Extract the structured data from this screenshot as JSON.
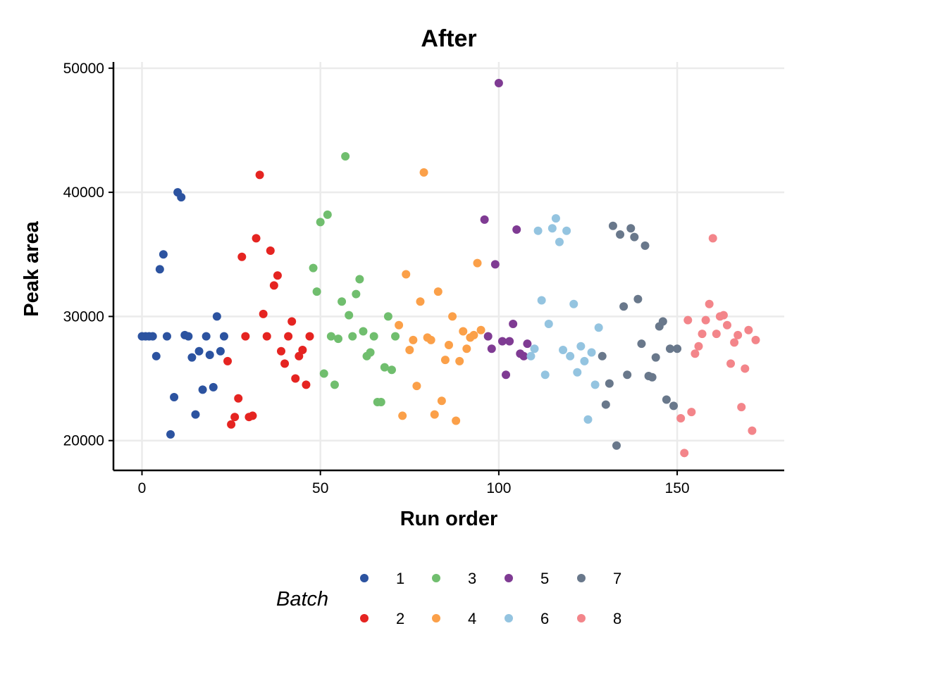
{
  "chart_data": {
    "type": "scatter",
    "title": "After",
    "xlabel": "Run order",
    "ylabel": "Peak area",
    "xlim": [
      -8,
      180
    ],
    "ylim": [
      17600,
      50500
    ],
    "x_ticks": [
      0,
      50,
      100,
      150
    ],
    "x_tick_labels": [
      "0",
      "50",
      "100",
      "150"
    ],
    "y_ticks": [
      20000,
      30000,
      40000,
      50000
    ],
    "y_tick_labels": [
      "20000",
      "30000",
      "40000",
      "50000"
    ],
    "grid": true,
    "legend": {
      "title": "Batch",
      "position": "bottom"
    },
    "series": [
      {
        "name": "1",
        "color": "#2c53a0",
        "points": [
          [
            0,
            28400
          ],
          [
            1,
            28400
          ],
          [
            2,
            28400
          ],
          [
            3,
            28400
          ],
          [
            4,
            26800
          ],
          [
            5,
            33800
          ],
          [
            6,
            35000
          ],
          [
            7,
            28400
          ],
          [
            8,
            20500
          ],
          [
            9,
            23500
          ],
          [
            10,
            40000
          ],
          [
            11,
            39600
          ],
          [
            12,
            28500
          ],
          [
            13,
            28400
          ],
          [
            14,
            26700
          ],
          [
            15,
            22100
          ],
          [
            16,
            27200
          ],
          [
            17,
            24100
          ],
          [
            18,
            28400
          ],
          [
            19,
            26900
          ],
          [
            20,
            24300
          ],
          [
            21,
            30000
          ],
          [
            22,
            27200
          ],
          [
            23,
            28400
          ]
        ]
      },
      {
        "name": "2",
        "color": "#e52421",
        "points": [
          [
            24,
            26400
          ],
          [
            25,
            21300
          ],
          [
            26,
            21900
          ],
          [
            27,
            23400
          ],
          [
            28,
            34800
          ],
          [
            29,
            28400
          ],
          [
            30,
            21900
          ],
          [
            31,
            22000
          ],
          [
            32,
            36300
          ],
          [
            33,
            41400
          ],
          [
            34,
            30200
          ],
          [
            35,
            28400
          ],
          [
            36,
            35300
          ],
          [
            37,
            32500
          ],
          [
            38,
            33300
          ],
          [
            39,
            27200
          ],
          [
            40,
            26200
          ],
          [
            41,
            28400
          ],
          [
            42,
            29600
          ],
          [
            43,
            25000
          ],
          [
            44,
            26800
          ],
          [
            45,
            27300
          ],
          [
            46,
            24500
          ],
          [
            47,
            28400
          ]
        ]
      },
      {
        "name": "3",
        "color": "#70be6e",
        "points": [
          [
            48,
            33900
          ],
          [
            49,
            32000
          ],
          [
            50,
            37600
          ],
          [
            51,
            25400
          ],
          [
            52,
            38200
          ],
          [
            53,
            28400
          ],
          [
            54,
            24500
          ],
          [
            55,
            28200
          ],
          [
            56,
            31200
          ],
          [
            57,
            42900
          ],
          [
            58,
            30100
          ],
          [
            59,
            28400
          ],
          [
            60,
            31800
          ],
          [
            61,
            33000
          ],
          [
            62,
            28800
          ],
          [
            63,
            26800
          ],
          [
            64,
            27100
          ],
          [
            65,
            28400
          ],
          [
            66,
            23100
          ],
          [
            67,
            23100
          ],
          [
            68,
            25900
          ],
          [
            69,
            30000
          ],
          [
            70,
            25700
          ],
          [
            71,
            28400
          ]
        ]
      },
      {
        "name": "4",
        "color": "#fba049",
        "points": [
          [
            72,
            29300
          ],
          [
            73,
            22000
          ],
          [
            74,
            33400
          ],
          [
            75,
            27300
          ],
          [
            76,
            28100
          ],
          [
            77,
            24400
          ],
          [
            78,
            31200
          ],
          [
            79,
            41600
          ],
          [
            80,
            28300
          ],
          [
            81,
            28100
          ],
          [
            82,
            22100
          ],
          [
            83,
            32000
          ],
          [
            84,
            23200
          ],
          [
            85,
            26500
          ],
          [
            86,
            27700
          ],
          [
            87,
            30000
          ],
          [
            88,
            21600
          ],
          [
            89,
            26400
          ],
          [
            90,
            28800
          ],
          [
            91,
            27400
          ],
          [
            92,
            28300
          ],
          [
            93,
            28500
          ],
          [
            94,
            34300
          ],
          [
            95,
            28900
          ]
        ]
      },
      {
        "name": "5",
        "color": "#7f3b93",
        "points": [
          [
            96,
            37800
          ],
          [
            97,
            28400
          ],
          [
            98,
            27400
          ],
          [
            99,
            34200
          ],
          [
            100,
            48800
          ],
          [
            101,
            28000
          ],
          [
            102,
            25300
          ],
          [
            103,
            28000
          ],
          [
            104,
            29400
          ],
          [
            105,
            37000
          ],
          [
            106,
            27000
          ],
          [
            107,
            26800
          ],
          [
            108,
            27800
          ]
        ]
      },
      {
        "name": "6",
        "color": "#94c4e0",
        "points": [
          [
            109,
            26800
          ],
          [
            110,
            27400
          ],
          [
            111,
            36900
          ],
          [
            112,
            31300
          ],
          [
            113,
            25300
          ],
          [
            114,
            29400
          ],
          [
            115,
            37100
          ],
          [
            116,
            37900
          ],
          [
            117,
            36000
          ],
          [
            118,
            27300
          ],
          [
            119,
            36900
          ],
          [
            120,
            26800
          ],
          [
            121,
            31000
          ],
          [
            122,
            25500
          ],
          [
            123,
            27600
          ],
          [
            124,
            26400
          ],
          [
            125,
            21700
          ],
          [
            126,
            27100
          ],
          [
            127,
            24500
          ],
          [
            128,
            29100
          ]
        ]
      },
      {
        "name": "7",
        "color": "#69788b",
        "points": [
          [
            129,
            26800
          ],
          [
            130,
            22900
          ],
          [
            131,
            24600
          ],
          [
            132,
            37300
          ],
          [
            133,
            19600
          ],
          [
            134,
            36600
          ],
          [
            135,
            30800
          ],
          [
            136,
            25300
          ],
          [
            137,
            37100
          ],
          [
            138,
            36400
          ],
          [
            139,
            31400
          ],
          [
            140,
            27800
          ],
          [
            141,
            35700
          ],
          [
            142,
            25200
          ],
          [
            143,
            25100
          ],
          [
            144,
            26700
          ],
          [
            145,
            29200
          ],
          [
            146,
            29600
          ],
          [
            147,
            23300
          ],
          [
            148,
            27400
          ],
          [
            149,
            22800
          ],
          [
            150,
            27400
          ]
        ]
      },
      {
        "name": "8",
        "color": "#f3858a",
        "points": [
          [
            151,
            21800
          ],
          [
            152,
            19000
          ],
          [
            153,
            29700
          ],
          [
            154,
            22300
          ],
          [
            155,
            27000
          ],
          [
            156,
            27600
          ],
          [
            157,
            28600
          ],
          [
            158,
            29700
          ],
          [
            159,
            31000
          ],
          [
            160,
            36300
          ],
          [
            161,
            28600
          ],
          [
            162,
            30000
          ],
          [
            163,
            30100
          ],
          [
            164,
            29300
          ],
          [
            165,
            26200
          ],
          [
            166,
            27900
          ],
          [
            167,
            28500
          ],
          [
            168,
            22700
          ],
          [
            169,
            25800
          ],
          [
            170,
            28900
          ],
          [
            171,
            20800
          ],
          [
            172,
            28100
          ]
        ]
      }
    ]
  }
}
